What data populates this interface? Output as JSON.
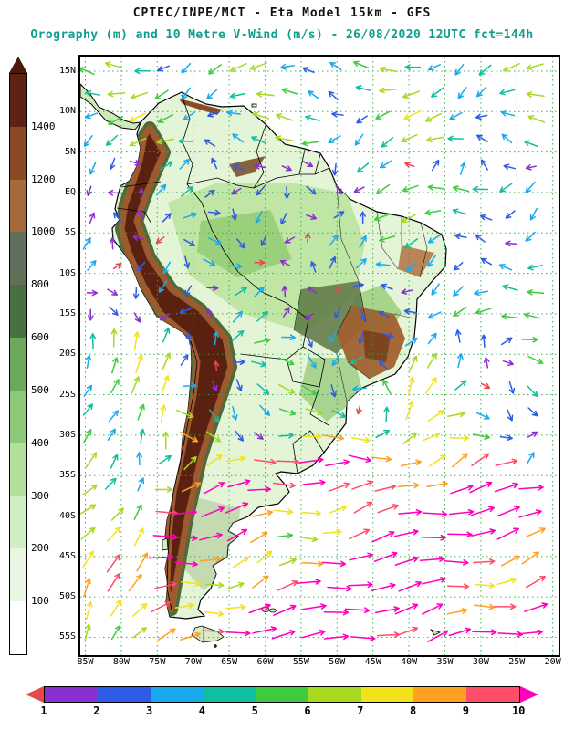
{
  "header": {
    "line1": "CPTEC/INPE/MCT -  Eta Model 15km - GFS",
    "line2": "Orography (m) and 10 Metre V-Wind (m/s) - 26/08/2020 12UTC fct=144h",
    "line2_color": "#0f9e8e"
  },
  "orography_colorbar": {
    "unit": "m",
    "labels_top_to_bottom": [
      "1400",
      "1200",
      "1000",
      "800",
      "600",
      "500",
      "400",
      "300",
      "200",
      "100"
    ],
    "colors_top_to_bottom": [
      "#5e2212",
      "#8a4a26",
      "#a5693a",
      "#5f6f5a",
      "#49713f",
      "#6aa85a",
      "#8cc979",
      "#b2e09a",
      "#cfeec2",
      "#e8f5e0",
      "#ffffff"
    ],
    "arrow_color": "#4a1a0c"
  },
  "map": {
    "grid_color": "#2aa845",
    "lat_ticks": [
      {
        "label": "15N",
        "deg": 15
      },
      {
        "label": "10N",
        "deg": 10
      },
      {
        "label": "5N",
        "deg": 5
      },
      {
        "label": "EQ",
        "deg": 0
      },
      {
        "label": "5S",
        "deg": -5
      },
      {
        "label": "10S",
        "deg": -10
      },
      {
        "label": "15S",
        "deg": -15
      },
      {
        "label": "20S",
        "deg": -20
      },
      {
        "label": "25S",
        "deg": -25
      },
      {
        "label": "30S",
        "deg": -30
      },
      {
        "label": "35S",
        "deg": -35
      },
      {
        "label": "40S",
        "deg": -40
      },
      {
        "label": "45S",
        "deg": -45
      },
      {
        "label": "50S",
        "deg": -50
      },
      {
        "label": "55S",
        "deg": -55
      }
    ],
    "lon_ticks": [
      {
        "label": "85W",
        "deg": -85
      },
      {
        "label": "80W",
        "deg": -80
      },
      {
        "label": "75W",
        "deg": -75
      },
      {
        "label": "70W",
        "deg": -70
      },
      {
        "label": "65W",
        "deg": -65
      },
      {
        "label": "60W",
        "deg": -60
      },
      {
        "label": "55W",
        "deg": -55
      },
      {
        "label": "50W",
        "deg": -50
      },
      {
        "label": "45W",
        "deg": -45
      },
      {
        "label": "40W",
        "deg": -40
      },
      {
        "label": "35W",
        "deg": -35
      },
      {
        "label": "30W",
        "deg": -30
      },
      {
        "label": "25W",
        "deg": -25
      },
      {
        "label": "20W",
        "deg": -20
      }
    ]
  },
  "wind_colorbar": {
    "unit": "m/s",
    "tick_labels": [
      "1",
      "2",
      "3",
      "4",
      "5",
      "6",
      "7",
      "8",
      "9",
      "10"
    ],
    "segment_colors": [
      "#8a2fd0",
      "#2e5ce6",
      "#19aaee",
      "#0fbf9f",
      "#3ecb3e",
      "#a8d820",
      "#f2e21c",
      "#ffa01e",
      "#ff4d6a"
    ],
    "under_arrow_color": "#e8474c",
    "over_arrow_color": "#ff00bb"
  },
  "chart_data": {
    "type": "heatmap",
    "subtype": "geographic orography shading with 10 m wind vector overlay",
    "source_header": "CPTEC/INPE/MCT - Eta Model 15km - GFS",
    "title": "Orography (m) and 10 Metre V-Wind (m/s)",
    "valid_label": "26/08/2020 12UTC fct=144h",
    "x_axis_lon_labels": [
      "85W",
      "80W",
      "75W",
      "70W",
      "65W",
      "60W",
      "55W",
      "50W",
      "45W",
      "40W",
      "35W",
      "30W",
      "25W",
      "20W"
    ],
    "y_axis_lat_labels": [
      "15N",
      "10N",
      "5N",
      "EQ",
      "5S",
      "10S",
      "15S",
      "20S",
      "25S",
      "30S",
      "35S",
      "40S",
      "45S",
      "50S",
      "55S"
    ],
    "grid": "5-degree dotted green graticule",
    "orography_levels_m": [
      100,
      200,
      300,
      400,
      500,
      600,
      800,
      1000,
      1200,
      1400
    ],
    "orography_colors_low_to_high": [
      "#ffffff",
      "#e8f5e0",
      "#cfeec2",
      "#b2e09a",
      "#8cc979",
      "#6aa85a",
      "#49713f",
      "#5f6f5a",
      "#a5693a",
      "#8a4a26",
      "#5e2212"
    ],
    "wind_speed_levels_ms": [
      1,
      2,
      3,
      4,
      5,
      6,
      7,
      8,
      9,
      10
    ],
    "wind_speed_colors_low_to_high": [
      "#e8474c",
      "#8a2fd0",
      "#2e5ce6",
      "#19aaee",
      "#0fbf9f",
      "#3ecb3e",
      "#a8d820",
      "#f2e21c",
      "#ffa01e",
      "#ff4d6a",
      "#ff00bb"
    ],
    "wind_field_regions": [
      {
        "area": "Southern Ocean and Patagonia south of 35S",
        "direction": "westerly turning NE",
        "speed_ms": "8-10+"
      },
      {
        "area": "SE Pacific along Chilean coast 20S-40S",
        "direction": "northward along coast",
        "speed_ms": "5-9"
      },
      {
        "area": "Subtropical South Atlantic near SE Brazil",
        "direction": "cyclonic swirl",
        "speed_ms": "5-10"
      },
      {
        "area": "Tropical Atlantic north of 5S",
        "direction": "easterly trades (toward W/SW)",
        "speed_ms": "3-6"
      },
      {
        "area": "Amazon interior",
        "direction": "weak and variable",
        "speed_ms": "1-3"
      },
      {
        "area": "Central and NE Brazil",
        "direction": "variable",
        "speed_ms": "3-7"
      }
    ]
  }
}
